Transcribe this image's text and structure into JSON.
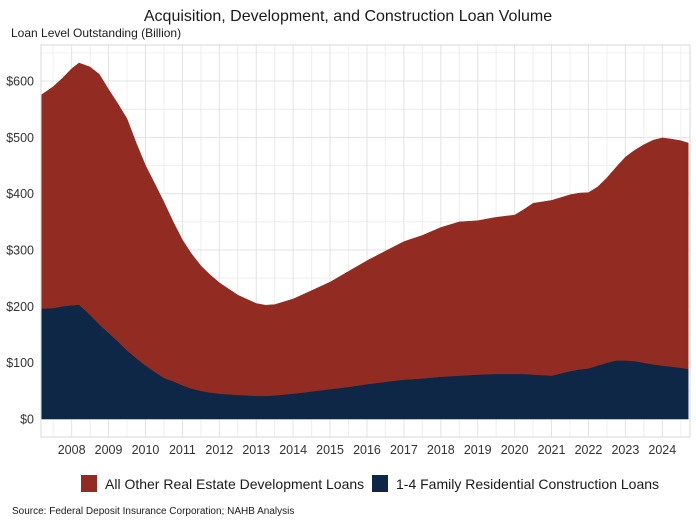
{
  "chart_data": {
    "type": "area",
    "stacked": true,
    "title": "Acquisition, Development, and Construction Loan Volume",
    "ylabel": "Loan Level Outstanding (Billion)",
    "xlabel": "",
    "source": "Source: Federal Deposit Insurance Corporation; NAHB Analysis",
    "xlim": [
      2007.17,
      2024.75
    ],
    "ylim": [
      -32,
      664
    ],
    "x_ticks": [
      2008,
      2009,
      2010,
      2011,
      2012,
      2013,
      2014,
      2015,
      2016,
      2017,
      2018,
      2019,
      2020,
      2021,
      2022,
      2023,
      2024
    ],
    "x_tick_labels": [
      "2008",
      "2009",
      "2010",
      "2011",
      "2012",
      "2013",
      "2014",
      "2015",
      "2016",
      "2017",
      "2018",
      "2019",
      "2020",
      "2021",
      "2022",
      "2023",
      "2024"
    ],
    "y_ticks": [
      0,
      100,
      200,
      300,
      400,
      500,
      600
    ],
    "y_tick_labels": [
      "$0",
      "$100",
      "$200",
      "$300",
      "$400",
      "$500",
      "$600"
    ],
    "grid": true,
    "legend_position": "bottom",
    "x": [
      2007.17,
      2007.5,
      2007.75,
      2008.0,
      2008.2,
      2008.5,
      2008.75,
      2009.0,
      2009.25,
      2009.5,
      2009.75,
      2010.0,
      2010.25,
      2010.5,
      2010.75,
      2011.0,
      2011.25,
      2011.5,
      2011.75,
      2012.0,
      2012.5,
      2013.0,
      2013.25,
      2013.5,
      2014.0,
      2014.5,
      2015.0,
      2015.5,
      2016.0,
      2016.5,
      2017.0,
      2017.5,
      2018.0,
      2018.5,
      2019.0,
      2019.5,
      2020.0,
      2020.25,
      2020.5,
      2021.0,
      2021.5,
      2021.75,
      2022.0,
      2022.25,
      2022.5,
      2022.75,
      2023.0,
      2023.25,
      2023.5,
      2023.75,
      2024.0,
      2024.25,
      2024.5,
      2024.7
    ],
    "series": [
      {
        "name": "1-4 Family Residential Construction Loans",
        "color": "#0e2747",
        "values": [
          196,
          197,
          200,
          202,
          203,
          185,
          168,
          153,
          138,
          122,
          108,
          95,
          84,
          73,
          67,
          60,
          54,
          50,
          47,
          45,
          43,
          41,
          41,
          42,
          45,
          49,
          53,
          57,
          62,
          66,
          70,
          72,
          75,
          77,
          79,
          80,
          80,
          80,
          79,
          77,
          85,
          88,
          90,
          95,
          100,
          104,
          104,
          103,
          100,
          97,
          95,
          93,
          91,
          89
        ]
      },
      {
        "name": "All Other Real Estate Development Loans",
        "color": "#922b21",
        "values": [
          379,
          393,
          405,
          420,
          429,
          440,
          444,
          432,
          422,
          411,
          382,
          355,
          334,
          312,
          283,
          258,
          239,
          222,
          209,
          197,
          177,
          164,
          161,
          161,
          168,
          179,
          190,
          205,
          219,
          232,
          245,
          254,
          265,
          273,
          273,
          278,
          282,
          292,
          304,
          311,
          313,
          313,
          312,
          317,
          328,
          343,
          361,
          374,
          387,
          398,
          404,
          404,
          403,
          401
        ]
      }
    ],
    "legend": [
      {
        "label": "All Other Real Estate Development Loans",
        "color": "#922b21"
      },
      {
        "label": "1-4 Family Residential Construction Loans",
        "color": "#0e2747"
      }
    ]
  }
}
